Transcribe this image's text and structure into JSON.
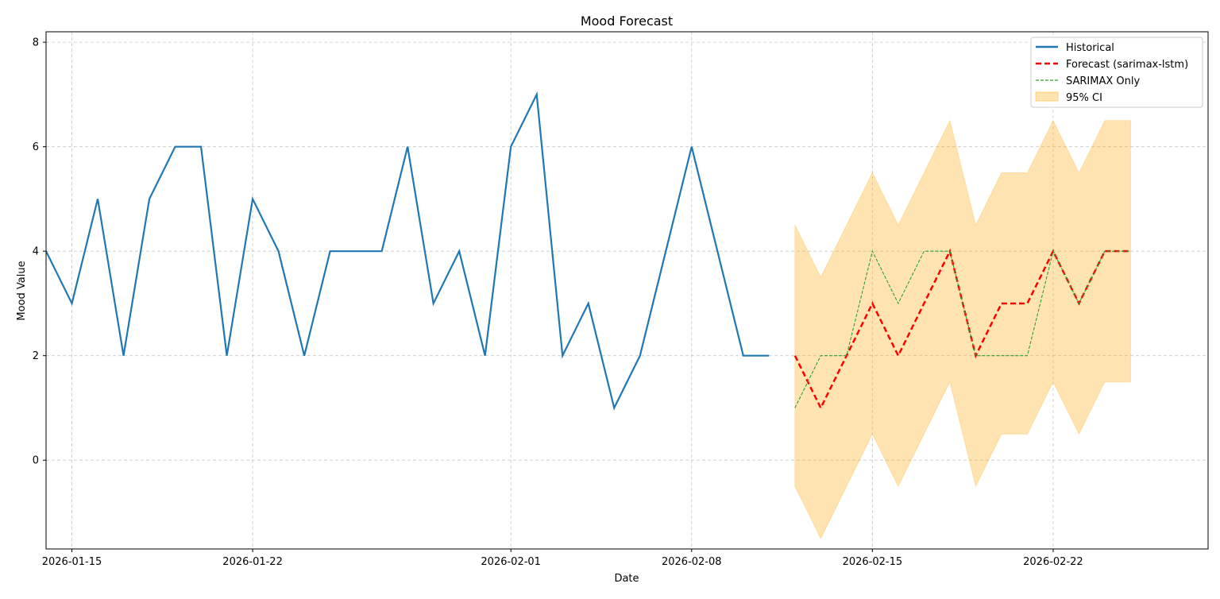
{
  "chart_data": {
    "type": "line",
    "title": "Mood Forecast",
    "xlabel": "Date",
    "ylabel": "Mood Value",
    "xlim": [
      "2026-01-14",
      "2026-02-28"
    ],
    "ylim": [
      -1.7,
      8.2
    ],
    "x_ticks": [
      "2026-01-15",
      "2026-01-22",
      "2026-02-01",
      "2026-02-08",
      "2026-02-15",
      "2026-02-22"
    ],
    "y_ticks": [
      0,
      2,
      4,
      6,
      8
    ],
    "grid": true,
    "legend_position": "top-right",
    "series": [
      {
        "name": "Historical",
        "color": "#1f77b4",
        "style": "solid",
        "x": [
          "2026-01-14",
          "2026-01-15",
          "2026-01-16",
          "2026-01-17",
          "2026-01-18",
          "2026-01-19",
          "2026-01-20",
          "2026-01-21",
          "2026-01-22",
          "2026-01-23",
          "2026-01-24",
          "2026-01-25",
          "2026-01-26",
          "2026-01-27",
          "2026-01-28",
          "2026-01-29",
          "2026-01-30",
          "2026-01-31",
          "2026-02-01",
          "2026-02-02",
          "2026-02-03",
          "2026-02-04",
          "2026-02-05",
          "2026-02-06",
          "2026-02-07",
          "2026-02-08",
          "2026-02-09",
          "2026-02-10",
          "2026-02-11"
        ],
        "values": [
          4,
          3,
          5,
          2,
          5,
          6,
          6,
          2,
          5,
          4,
          2,
          4,
          4,
          4,
          6,
          3,
          4,
          2,
          6,
          7,
          2,
          3,
          1,
          2,
          4,
          6,
          4,
          2,
          2
        ]
      },
      {
        "name": "Forecast (sarimax-lstm)",
        "color": "#ff0000",
        "style": "dashed",
        "x": [
          "2026-02-12",
          "2026-02-13",
          "2026-02-14",
          "2026-02-15",
          "2026-02-16",
          "2026-02-17",
          "2026-02-18",
          "2026-02-19",
          "2026-02-20",
          "2026-02-21",
          "2026-02-22",
          "2026-02-23",
          "2026-02-24",
          "2026-02-25"
        ],
        "values": [
          2,
          1,
          2,
          3,
          2,
          3,
          4,
          2,
          3,
          3,
          4,
          3,
          4,
          4
        ]
      },
      {
        "name": "SARIMAX Only",
        "color": "#2ca02c",
        "style": "dashed-thin",
        "x": [
          "2026-02-12",
          "2026-02-13",
          "2026-02-14",
          "2026-02-15",
          "2026-02-16",
          "2026-02-17",
          "2026-02-18",
          "2026-02-19",
          "2026-02-20",
          "2026-02-21",
          "2026-02-22",
          "2026-02-23",
          "2026-02-24",
          "2026-02-25"
        ],
        "values": [
          1,
          2,
          2,
          4,
          3,
          4,
          4,
          2,
          2,
          2,
          4,
          3,
          4,
          4
        ]
      }
    ],
    "confidence_interval": {
      "name": "95% CI",
      "color": "#ffa500",
      "x": [
        "2026-02-12",
        "2026-02-13",
        "2026-02-14",
        "2026-02-15",
        "2026-02-16",
        "2026-02-17",
        "2026-02-18",
        "2026-02-19",
        "2026-02-20",
        "2026-02-21",
        "2026-02-22",
        "2026-02-23",
        "2026-02-24",
        "2026-02-25"
      ],
      "lower": [
        -0.5,
        -1.5,
        -0.5,
        0.5,
        -0.5,
        0.5,
        1.5,
        -0.5,
        0.5,
        0.5,
        1.5,
        0.5,
        1.5,
        1.5
      ],
      "upper": [
        4.5,
        3.5,
        4.5,
        5.5,
        4.5,
        5.5,
        6.5,
        4.5,
        5.5,
        5.5,
        6.5,
        5.5,
        6.5,
        6.5
      ]
    }
  }
}
